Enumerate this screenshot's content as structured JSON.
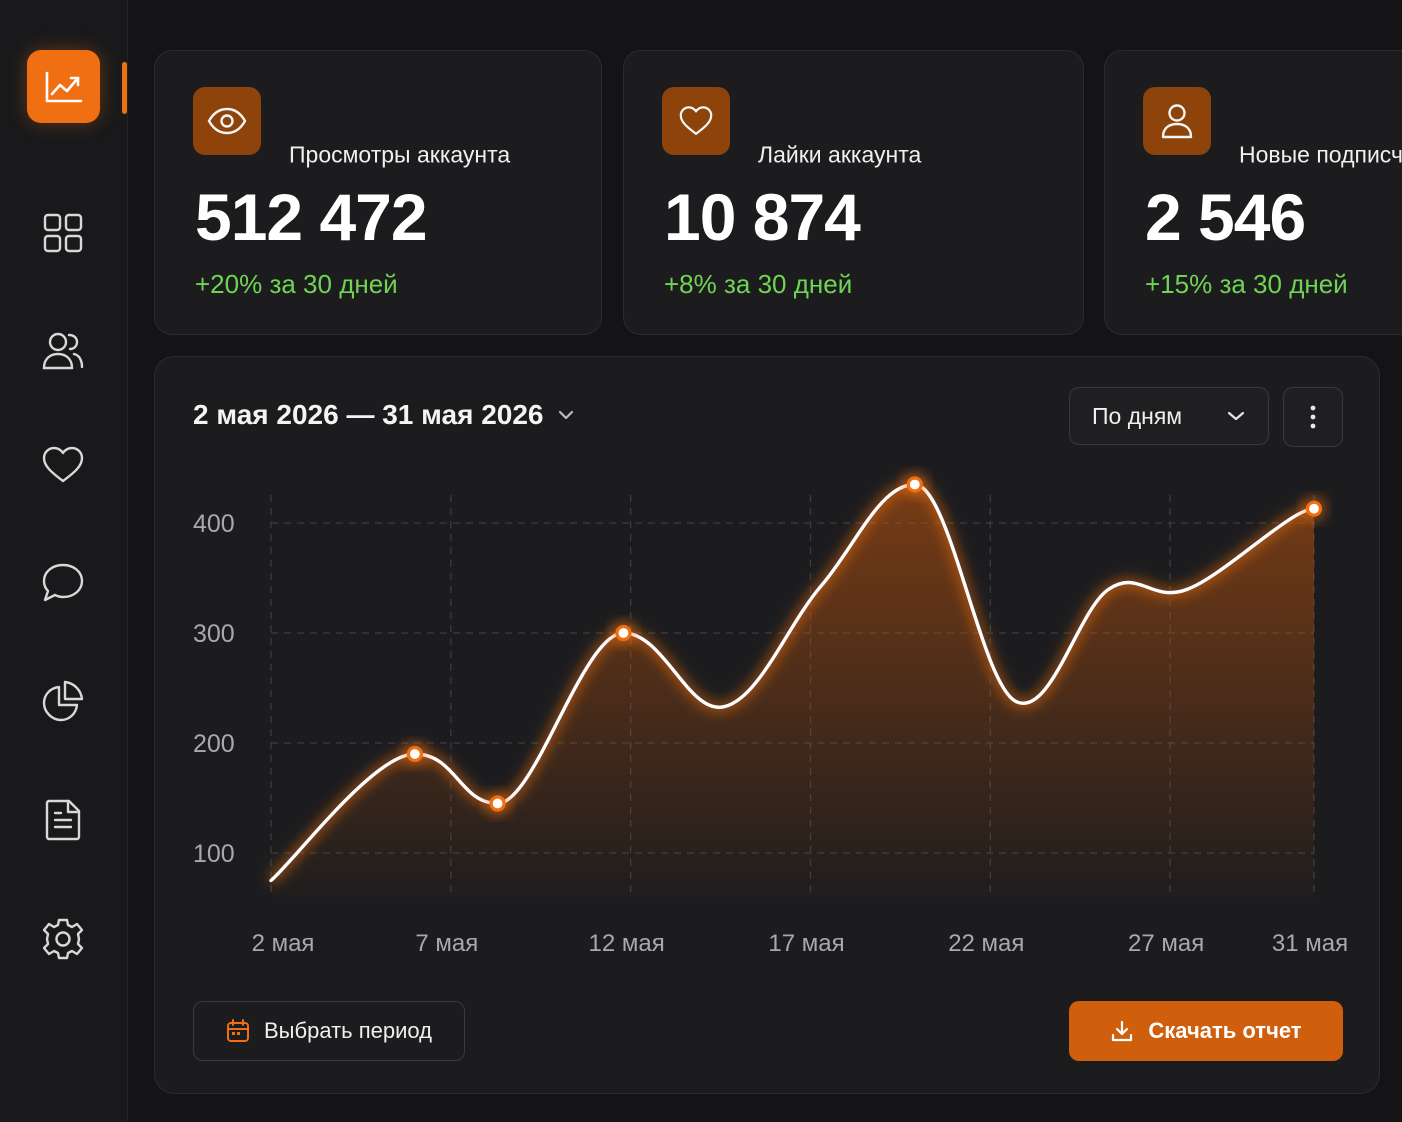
{
  "sidebar": {
    "logo_icon": "chart-line-up-icon",
    "items": [
      {
        "name": "dashboard",
        "icon": "grid-icon"
      },
      {
        "name": "audience",
        "icon": "users-icon"
      },
      {
        "name": "likes",
        "icon": "heart-icon"
      },
      {
        "name": "messages",
        "icon": "chat-icon"
      },
      {
        "name": "analytics",
        "icon": "pie-chart-icon"
      },
      {
        "name": "reports",
        "icon": "document-icon"
      },
      {
        "name": "settings",
        "icon": "gear-icon"
      }
    ]
  },
  "stats": [
    {
      "title": "Просмотры аккаунта",
      "value": "512 472",
      "delta": "+20% за 30 дней",
      "icon": "eye-icon"
    },
    {
      "title": "Лайки аккаунта",
      "value": "10 874",
      "delta": "+8% за 30 дней",
      "icon": "heart-icon"
    },
    {
      "title": "Новые подписчики",
      "value": "2 546",
      "delta": "+15% за 30 дней",
      "icon": "user-icon"
    }
  ],
  "panel": {
    "date_range": "2 мая 2026 — 31 мая 2026",
    "granularity": "По дням",
    "select_period_label": "Выбрать период",
    "download_label": "Скачать отчет"
  },
  "colors": {
    "accent": "#ef6f12",
    "positive": "#6fd452",
    "background": "#141416",
    "card": "#1c1c1e"
  },
  "chart_data": {
    "type": "area",
    "x_tick_labels": [
      "2 мая",
      "7 мая",
      "12 мая",
      "17 мая",
      "22 мая",
      "27 мая",
      "31 мая"
    ],
    "y_ticks": [
      100,
      200,
      300,
      400
    ],
    "ylim": [
      60,
      460
    ],
    "grid": true,
    "series": [
      {
        "x": [
          2,
          6,
          8.3,
          11.8,
          14.6,
          17.3,
          19.9,
          22.7,
          25.3,
          27.5,
          31
        ],
        "values": [
          75,
          190,
          145,
          300,
          233,
          343,
          435,
          238,
          340,
          340,
          413
        ],
        "markers": [
          false,
          true,
          true,
          true,
          false,
          false,
          true,
          false,
          false,
          false,
          true
        ]
      }
    ]
  }
}
